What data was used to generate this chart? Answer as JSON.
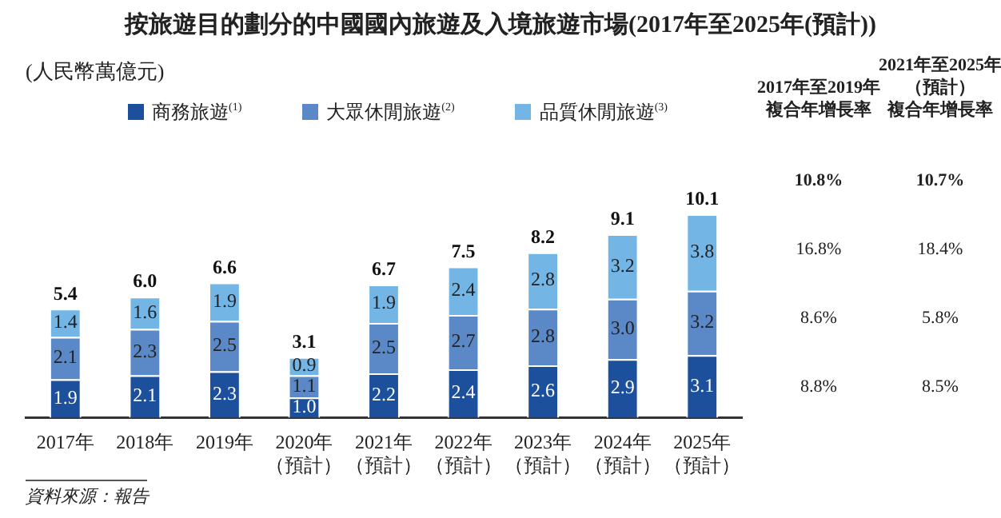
{
  "chart_data": {
    "type": "bar",
    "title": "按旅遊目的劃分的中國國內旅遊及入境旅遊市場(2017年至2025年(預計))",
    "categories": [
      "2017年",
      "2018年",
      "2019年",
      "2020年（預計）",
      "2021年（預計）",
      "2022年（預計）",
      "2023年（預計）",
      "2024年（預計）",
      "2025年（預計）"
    ],
    "stacked": true,
    "legend": "top",
    "totals": [
      "5.4",
      "6.0",
      "6.6",
      "3.1",
      "6.7",
      "7.5",
      "8.2",
      "9.1",
      "10.1"
    ],
    "series": [
      {
        "name": "商務旅遊$^{(1)}$",
        "color": "#1c4f9c",
        "values": [
          1.9,
          2.1,
          2.3,
          1.0,
          2.2,
          2.4,
          2.6,
          2.9,
          3.1
        ],
        "value_labels": [
          "1.9",
          "2.1",
          "2.3",
          "1.0",
          "2.2",
          "2.4",
          "2.6",
          "2.9",
          "3.1"
        ]
      },
      {
        "name": "大眾休閒旅遊$^{(2)}$",
        "color": "#5b89c7",
        "values": [
          2.1,
          2.3,
          2.5,
          1.1,
          2.5,
          2.7,
          2.8,
          3.0,
          3.2
        ],
        "value_labels": [
          "2.1",
          "2.3",
          "2.5",
          "1.1",
          "2.5",
          "2.7",
          "2.8",
          "3.0",
          "3.2"
        ]
      },
      {
        "name": "品質休閒旅遊$^{(3)}$",
        "color": "#73b6e6",
        "values": [
          1.4,
          1.6,
          1.9,
          0.9,
          1.9,
          2.4,
          2.8,
          3.2,
          3.8
        ],
        "value_labels": [
          "1.4",
          "1.6",
          "1.9",
          "0.9",
          "1.9",
          "2.4",
          "2.8",
          "3.2",
          "3.8"
        ]
      }
    ],
    "annotations": [
      "(人民幣萬億元)",
      "2017年至2019年複合年增長率",
      "2021年至2025年（預計）複合年增長率",
      "10.8%",
      "10.7%",
      "16.8%",
      "18.4%",
      "8.6%",
      "5.8%",
      "8.8%",
      "8.5%",
      "資料來源：報告"
    ]
  }
}
